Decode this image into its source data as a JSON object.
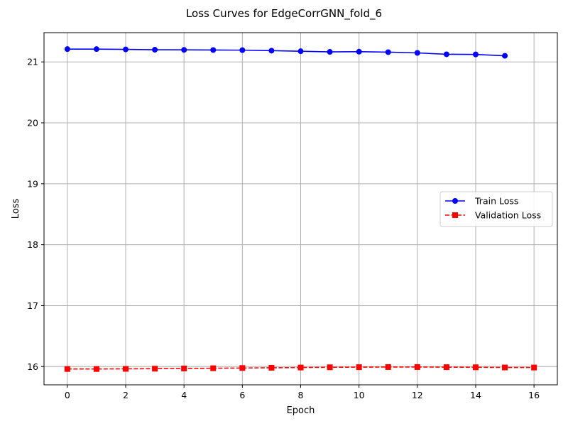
{
  "chart_data": {
    "type": "line",
    "title": "Loss Curves for EdgeCorrGNN_fold_6",
    "xlabel": "Epoch",
    "ylabel": "Loss",
    "xlim": [
      -0.8,
      16.8
    ],
    "ylim": [
      15.7,
      21.48
    ],
    "xticks": [
      0,
      2,
      4,
      6,
      8,
      10,
      12,
      14,
      16
    ],
    "yticks": [
      16,
      17,
      18,
      19,
      20,
      21
    ],
    "grid": true,
    "legend_position": "center-right",
    "series": [
      {
        "name": "Train Loss",
        "color": "#0000ff",
        "marker": "circle",
        "linestyle": "solid",
        "x": [
          0,
          1,
          2,
          3,
          4,
          5,
          6,
          7,
          8,
          9,
          10,
          11,
          12,
          13,
          14,
          15
        ],
        "values": [
          21.21,
          21.21,
          21.205,
          21.2,
          21.198,
          21.195,
          21.193,
          21.185,
          21.175,
          21.165,
          21.168,
          21.16,
          21.148,
          21.125,
          21.123,
          21.1
        ]
      },
      {
        "name": "Validation Loss",
        "color": "#ff0000",
        "marker": "square",
        "linestyle": "dashed",
        "x": [
          0,
          1,
          2,
          3,
          4,
          5,
          6,
          7,
          8,
          9,
          10,
          11,
          12,
          13,
          14,
          15,
          16
        ],
        "values": [
          15.96,
          15.96,
          15.962,
          15.965,
          15.968,
          15.972,
          15.976,
          15.98,
          15.984,
          15.988,
          15.99,
          15.992,
          15.992,
          15.99,
          15.988,
          15.985,
          15.984
        ]
      }
    ]
  }
}
